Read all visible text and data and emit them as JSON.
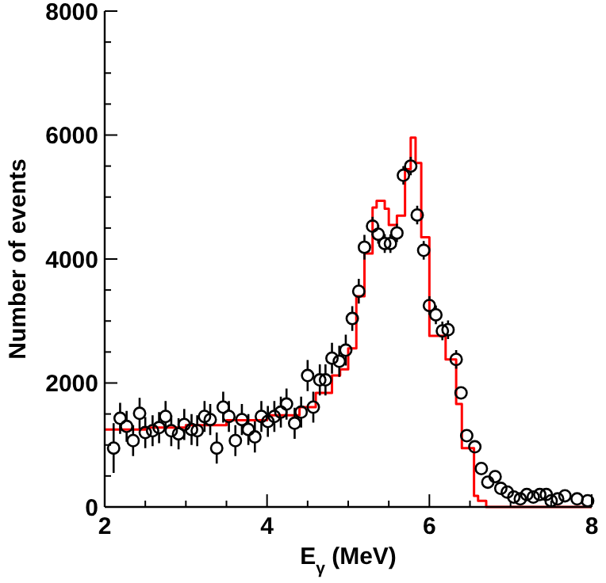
{
  "chart_data": {
    "type": "scatter",
    "xlabel": "E$_{γ}$ (MeV)",
    "ylabel": "Number of events",
    "xlim": [
      2,
      8
    ],
    "ylim": [
      0,
      8000
    ],
    "xticks": [
      2,
      {
        "value": 2.5,
        "label": null
      },
      {
        "value": 3,
        "label": null
      },
      {
        "value": 3.5,
        "label": null
      },
      4,
      {
        "value": 4.5,
        "label": null
      },
      {
        "value": 5,
        "label": null
      },
      {
        "value": 5.5,
        "label": null
      },
      6,
      {
        "value": 6.5,
        "label": null
      },
      {
        "value": 7,
        "label": null
      },
      {
        "value": 7.5,
        "label": null
      },
      8
    ],
    "yticks": [
      0,
      {
        "value": 500,
        "label": null
      },
      {
        "value": 1000,
        "label": null
      },
      {
        "value": 1500,
        "label": null
      },
      2000,
      {
        "value": 2500,
        "label": null
      },
      {
        "value": 3000,
        "label": null
      },
      {
        "value": 3500,
        "label": null
      },
      4000,
      {
        "value": 4500,
        "label": null
      },
      {
        "value": 5000,
        "label": null
      },
      {
        "value": 5500,
        "label": null
      },
      6000,
      {
        "value": 6500,
        "label": null
      },
      {
        "value": 7000,
        "label": null
      },
      {
        "value": 7500,
        "label": null
      },
      8000
    ],
    "grid": false,
    "series": [
      {
        "type": "step",
        "color": "#ff0000",
        "line_style": "solid",
        "marker": "none",
        "x": [
          2.0,
          2.5,
          3.0,
          3.5,
          4.0,
          4.4,
          4.6,
          4.8,
          4.9,
          5.0,
          5.1,
          5.2,
          5.3,
          5.35,
          5.45,
          5.5,
          5.6,
          5.7,
          5.77,
          5.83,
          5.9,
          6.0,
          6.1,
          6.2,
          6.33,
          6.4,
          6.55,
          6.6,
          6.7,
          8.0
        ],
        "values": [
          1250,
          1280,
          1320,
          1400,
          1480,
          1610,
          1840,
          2120,
          2220,
          2560,
          3400,
          4090,
          4830,
          4940,
          4810,
          4550,
          4700,
          5450,
          5960,
          5550,
          4350,
          2760,
          2760,
          2380,
          1660,
          950,
          180,
          100,
          0,
          0
        ]
      },
      {
        "color": "#000000",
        "marker": "circle",
        "x": [
          2.11,
          2.19,
          2.27,
          2.35,
          2.43,
          2.5,
          2.59,
          2.67,
          2.75,
          2.82,
          2.91,
          2.98,
          3.07,
          3.14,
          3.23,
          3.3,
          3.38,
          3.46,
          3.53,
          3.61,
          3.69,
          3.77,
          3.85,
          3.93,
          4.01,
          4.09,
          4.17,
          4.24,
          4.34,
          4.42,
          4.5,
          4.57,
          4.65,
          4.72,
          4.8,
          4.89,
          4.97,
          5.05,
          5.13,
          5.2,
          5.3,
          5.37,
          5.45,
          5.52,
          5.6,
          5.68,
          5.77,
          5.85,
          5.93,
          6.0,
          6.08,
          6.16,
          6.23,
          6.33,
          6.39,
          6.46,
          6.56,
          6.64,
          6.72,
          6.81,
          6.88,
          6.96,
          7.04,
          7.12,
          7.2,
          7.28,
          7.36,
          7.44,
          7.5,
          7.58,
          7.67,
          7.82,
          7.95
        ],
        "values": [
          950,
          1430,
          1300,
          1070,
          1510,
          1200,
          1230,
          1280,
          1460,
          1230,
          1180,
          1330,
          1250,
          1230,
          1460,
          1410,
          950,
          1610,
          1460,
          1070,
          1410,
          1250,
          1130,
          1460,
          1380,
          1460,
          1530,
          1660,
          1350,
          1530,
          2120,
          1610,
          2050,
          2050,
          2400,
          2350,
          2530,
          3040,
          3480,
          4190,
          4530,
          4400,
          4250,
          4250,
          4420,
          5350,
          5500,
          4710,
          4140,
          3250,
          3100,
          2840,
          2860,
          2380,
          1840,
          1150,
          970,
          620,
          400,
          490,
          300,
          240,
          160,
          130,
          200,
          160,
          200,
          200,
          100,
          130,
          180,
          130,
          100
        ],
        "errors": [
          400,
          250,
          250,
          250,
          250,
          250,
          250,
          250,
          250,
          250,
          250,
          250,
          250,
          250,
          250,
          250,
          250,
          250,
          250,
          250,
          250,
          250,
          250,
          250,
          250,
          250,
          250,
          250,
          250,
          250,
          250,
          250,
          250,
          250,
          250,
          250,
          250,
          200,
          200,
          200,
          150,
          150,
          150,
          150,
          150,
          150,
          150,
          150,
          150,
          150,
          150,
          150,
          150,
          150,
          null,
          null,
          null,
          null,
          null,
          null,
          null,
          null,
          null,
          null,
          null,
          null,
          null,
          null,
          null,
          null,
          null,
          null,
          null
        ]
      }
    ]
  }
}
